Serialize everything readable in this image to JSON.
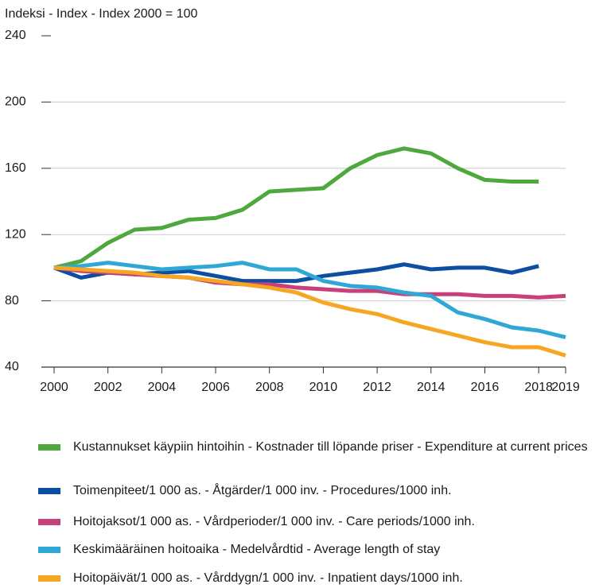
{
  "chart_data": {
    "type": "line",
    "y_label": "Indeksi - Index - Index 2000 = 100",
    "x": [
      2000,
      2001,
      2002,
      2003,
      2004,
      2005,
      2006,
      2007,
      2008,
      2009,
      2010,
      2011,
      2012,
      2013,
      2014,
      2015,
      2016,
      2017,
      2018,
      2019
    ],
    "xlim": [
      2000,
      2019
    ],
    "xticks": [
      2000,
      2002,
      2004,
      2006,
      2008,
      2010,
      2012,
      2014,
      2016,
      2018,
      2019
    ],
    "ylim": [
      40,
      240
    ],
    "yticks": [
      40,
      80,
      120,
      160,
      200,
      240
    ],
    "grid": true,
    "series": [
      {
        "name": "Kustannukset käypiin hintoihin - Kostnader till löpande priser - Expenditure at current prices",
        "color": "#4fa83d",
        "values": [
          100,
          104,
          115,
          123,
          124,
          129,
          130,
          135,
          146,
          147,
          148,
          160,
          168,
          172,
          169,
          160,
          153,
          152,
          152,
          null
        ]
      },
      {
        "name": "Toimenpiteet/1 000 as. - Åtgärder/1 000 inv. - Procedures/1000 inh.",
        "color": "#0b4ea2",
        "values": [
          100,
          94,
          97,
          96,
          97,
          98,
          95,
          92,
          92,
          92,
          95,
          97,
          99,
          102,
          99,
          100,
          100,
          97,
          101,
          null
        ]
      },
      {
        "name": "Hoitojaksot/1 000 as. - Vårdperioder/1 000 inv. - Care periods/1000 inh.",
        "color": "#c8407a",
        "values": [
          100,
          98,
          97,
          96,
          95,
          94,
          91,
          90,
          90,
          88,
          87,
          86,
          86,
          84,
          84,
          84,
          83,
          83,
          82,
          83
        ]
      },
      {
        "name": "Keskimääräinen hoitoaika - Medelvårdtid - Average length of stay",
        "color": "#2fa8d6",
        "values": [
          100,
          101,
          103,
          101,
          99,
          100,
          101,
          103,
          99,
          99,
          92,
          89,
          88,
          85,
          83,
          73,
          69,
          64,
          62,
          58
        ]
      },
      {
        "name": "Hoitopäivät/1 000 as. - Vårddygn/1 000 inv. - Inpatient days/1000 inh.",
        "color": "#f5a623",
        "values": [
          100,
          99,
          98,
          97,
          95,
          94,
          92,
          90,
          88,
          85,
          79,
          75,
          72,
          67,
          63,
          59,
          55,
          52,
          52,
          47
        ]
      }
    ]
  }
}
